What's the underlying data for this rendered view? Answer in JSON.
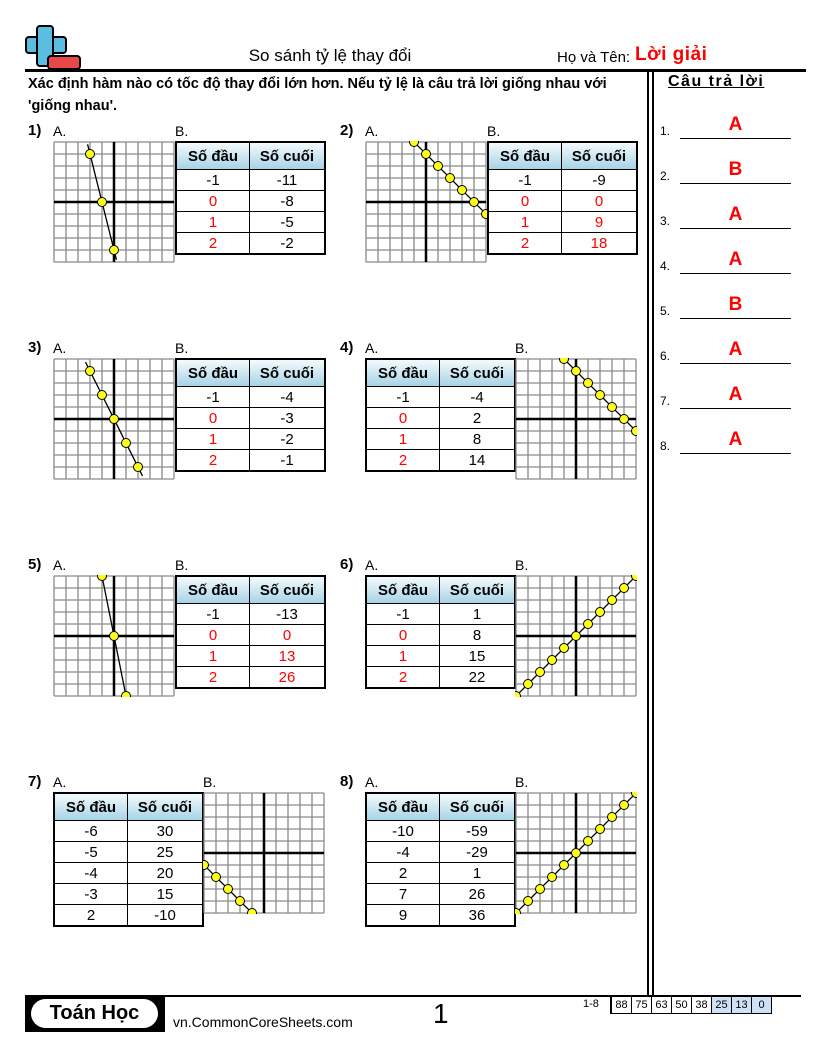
{
  "header": {
    "title": "So sánh tỷ lệ thay đổi",
    "name_label": "Họ và Tên:",
    "name_value": "Lời giải",
    "logo_icon": "plus-minus-logo"
  },
  "instructions": "Xác định hàm nào có tốc độ thay đổi lớn hơn. Nếu tỷ lệ là câu trả lời giống nhau với 'giống nhau'.",
  "answers": {
    "title": "Câu trả lời",
    "items": [
      {
        "num": "1.",
        "value": "A"
      },
      {
        "num": "2.",
        "value": "B"
      },
      {
        "num": "3.",
        "value": "A"
      },
      {
        "num": "4.",
        "value": "A"
      },
      {
        "num": "5.",
        "value": "B"
      },
      {
        "num": "6.",
        "value": "A"
      },
      {
        "num": "7.",
        "value": "A"
      },
      {
        "num": "8.",
        "value": "A"
      }
    ]
  },
  "problems": [
    {
      "num": "1)",
      "a_label": "A.",
      "b_label": "B.",
      "a": {
        "type": "graph",
        "points": [
          [
            -2,
            4
          ],
          [
            -1,
            0
          ],
          [
            0,
            -4
          ]
        ]
      },
      "b": {
        "type": "table",
        "headers": [
          "Số đầu",
          "Số cuối"
        ],
        "rows": [
          [
            "-1",
            "-11"
          ],
          [
            "0",
            "-8"
          ],
          [
            "1",
            "-5"
          ],
          [
            "2",
            "-2"
          ]
        ],
        "red": [
          [
            1,
            0
          ],
          [
            2,
            0
          ],
          [
            3,
            0
          ]
        ]
      }
    },
    {
      "num": "2)",
      "a_label": "A.",
      "b_label": "B.",
      "a": {
        "type": "graph",
        "points": [
          [
            -1,
            5
          ],
          [
            0,
            4
          ],
          [
            1,
            3
          ],
          [
            2,
            2
          ],
          [
            3,
            1
          ],
          [
            4,
            0
          ],
          [
            5,
            -1
          ]
        ]
      },
      "b": {
        "type": "table",
        "headers": [
          "Số đầu",
          "Số cuối"
        ],
        "rows": [
          [
            "-1",
            "-9"
          ],
          [
            "0",
            "0"
          ],
          [
            "1",
            "9"
          ],
          [
            "2",
            "18"
          ]
        ],
        "red": [
          [
            1,
            0
          ],
          [
            1,
            1
          ],
          [
            2,
            0
          ],
          [
            2,
            1
          ],
          [
            3,
            0
          ],
          [
            3,
            1
          ]
        ]
      }
    },
    {
      "num": "3)",
      "a_label": "A.",
      "b_label": "B.",
      "a": {
        "type": "graph",
        "points": [
          [
            -2,
            4
          ],
          [
            -1,
            2
          ],
          [
            0,
            0
          ],
          [
            1,
            -2
          ],
          [
            2,
            -4
          ]
        ]
      },
      "b": {
        "type": "table",
        "headers": [
          "Số đầu",
          "Số cuối"
        ],
        "rows": [
          [
            "-1",
            "-4"
          ],
          [
            "0",
            "-3"
          ],
          [
            "1",
            "-2"
          ],
          [
            "2",
            "-1"
          ]
        ],
        "red": [
          [
            1,
            0
          ],
          [
            2,
            0
          ],
          [
            3,
            0
          ]
        ]
      }
    },
    {
      "num": "4)",
      "a_label": "A.",
      "b_label": "B.",
      "a": {
        "type": "table",
        "headers": [
          "Số đầu",
          "Số cuối"
        ],
        "rows": [
          [
            "-1",
            "-4"
          ],
          [
            "0",
            "2"
          ],
          [
            "1",
            "8"
          ],
          [
            "2",
            "14"
          ]
        ],
        "red": [
          [
            1,
            0
          ],
          [
            2,
            0
          ],
          [
            3,
            0
          ]
        ]
      },
      "b": {
        "type": "graph",
        "points": [
          [
            -1,
            5
          ],
          [
            0,
            4
          ],
          [
            1,
            3
          ],
          [
            2,
            2
          ],
          [
            3,
            1
          ],
          [
            4,
            0
          ],
          [
            5,
            -1
          ]
        ]
      }
    },
    {
      "num": "5)",
      "a_label": "A.",
      "b_label": "B.",
      "a": {
        "type": "graph",
        "points": [
          [
            -1,
            5
          ],
          [
            0,
            0
          ],
          [
            1,
            -5
          ]
        ]
      },
      "b": {
        "type": "table",
        "headers": [
          "Số đầu",
          "Số cuối"
        ],
        "rows": [
          [
            "-1",
            "-13"
          ],
          [
            "0",
            "0"
          ],
          [
            "1",
            "13"
          ],
          [
            "2",
            "26"
          ]
        ],
        "red": [
          [
            1,
            0
          ],
          [
            1,
            1
          ],
          [
            2,
            0
          ],
          [
            2,
            1
          ],
          [
            3,
            0
          ],
          [
            3,
            1
          ]
        ]
      }
    },
    {
      "num": "6)",
      "a_label": "A.",
      "b_label": "B.",
      "a": {
        "type": "table",
        "headers": [
          "Số đầu",
          "Số cuối"
        ],
        "rows": [
          [
            "-1",
            "1"
          ],
          [
            "0",
            "8"
          ],
          [
            "1",
            "15"
          ],
          [
            "2",
            "22"
          ]
        ],
        "red": [
          [
            1,
            0
          ],
          [
            2,
            0
          ],
          [
            3,
            0
          ]
        ]
      },
      "b": {
        "type": "graph",
        "points": [
          [
            -5,
            -5
          ],
          [
            -4,
            -4
          ],
          [
            -3,
            -3
          ],
          [
            -2,
            -2
          ],
          [
            -1,
            -1
          ],
          [
            0,
            0
          ],
          [
            1,
            1
          ],
          [
            2,
            2
          ],
          [
            3,
            3
          ],
          [
            4,
            4
          ],
          [
            5,
            5
          ]
        ]
      }
    },
    {
      "num": "7)",
      "a_label": "A.",
      "b_label": "B.",
      "a": {
        "type": "table",
        "headers": [
          "Số đầu",
          "Số cuối"
        ],
        "rows": [
          [
            "-6",
            "30"
          ],
          [
            "-5",
            "25"
          ],
          [
            "-4",
            "20"
          ],
          [
            "-3",
            "15"
          ],
          [
            "2",
            "-10"
          ]
        ],
        "red": []
      },
      "b": {
        "type": "graph",
        "points": [
          [
            -5,
            -1
          ],
          [
            -4,
            -2
          ],
          [
            -3,
            -3
          ],
          [
            -2,
            -4
          ],
          [
            -1,
            -5
          ]
        ]
      }
    },
    {
      "num": "8)",
      "a_label": "A.",
      "b_label": "B.",
      "a": {
        "type": "table",
        "headers": [
          "Số đầu",
          "Số cuối"
        ],
        "rows": [
          [
            "-10",
            "-59"
          ],
          [
            "-4",
            "-29"
          ],
          [
            "2",
            "1"
          ],
          [
            "7",
            "26"
          ],
          [
            "9",
            "36"
          ]
        ],
        "red": []
      },
      "b": {
        "type": "graph",
        "points": [
          [
            -5,
            -5
          ],
          [
            -4,
            -4
          ],
          [
            -3,
            -3
          ],
          [
            -2,
            -2
          ],
          [
            -1,
            -1
          ],
          [
            0,
            0
          ],
          [
            1,
            1
          ],
          [
            2,
            2
          ],
          [
            3,
            3
          ],
          [
            4,
            4
          ],
          [
            5,
            5
          ]
        ]
      }
    }
  ],
  "footer": {
    "brand": "Toán Học",
    "url": "vn.CommonCoreSheets.com",
    "page": "1",
    "score_label": "1-8",
    "scores": [
      "88",
      "75",
      "63",
      "50",
      "38",
      "25",
      "13",
      "0"
    ]
  }
}
